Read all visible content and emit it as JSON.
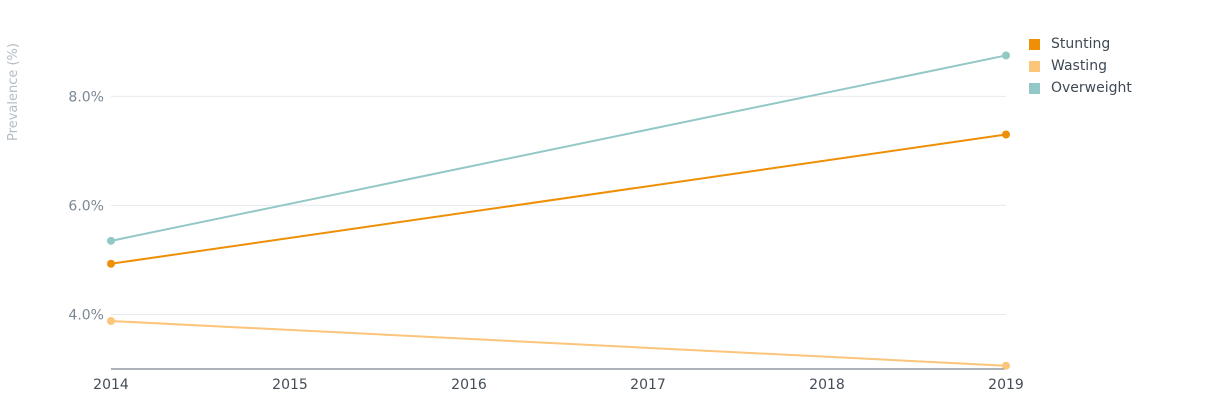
{
  "chart_data": {
    "type": "line",
    "x": [
      2014,
      2019
    ],
    "x_ticks": [
      "2014",
      "2015",
      "2016",
      "2017",
      "2018",
      "2019"
    ],
    "y_ticks": [
      {
        "value": 4.0,
        "label": "4.0%"
      },
      {
        "value": 6.0,
        "label": "6.0%"
      },
      {
        "value": 8.0,
        "label": "8.0%"
      }
    ],
    "ylabel": "Prevalence (%)",
    "xlim": [
      2014,
      2019
    ],
    "ylim": [
      3.0,
      9.4
    ],
    "grid": "horizontal",
    "legend_position": "top-right",
    "series": [
      {
        "name": "Stunting",
        "color": "#ee8f06",
        "values": [
          4.93,
          7.3
        ]
      },
      {
        "name": "Wasting",
        "color": "#fbc57a",
        "values": [
          3.88,
          3.06
        ]
      },
      {
        "name": "Overweight",
        "color": "#92c8c5",
        "values": [
          5.35,
          8.75
        ]
      }
    ]
  }
}
